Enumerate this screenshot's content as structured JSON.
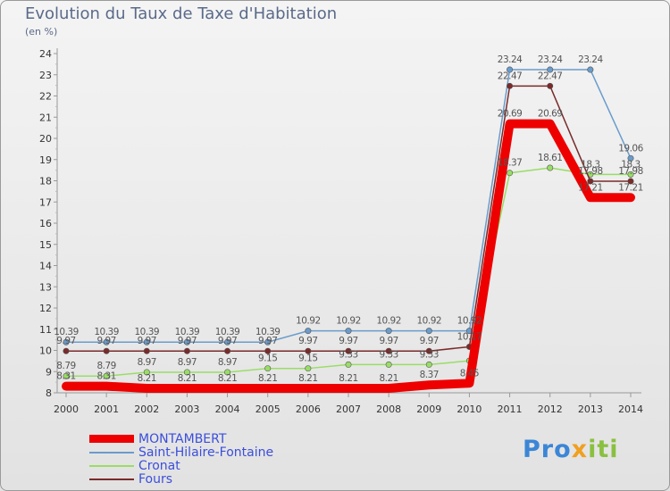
{
  "chart_data": {
    "type": "line",
    "title": "Evolution du Taux de Taxe d'Habitation",
    "unit": "(en %)",
    "x": [
      "2000",
      "2001",
      "2002",
      "2003",
      "2004",
      "2005",
      "2006",
      "2007",
      "2008",
      "2009",
      "2010",
      "2011",
      "2012",
      "2013",
      "2014"
    ],
    "ylim": [
      8,
      24
    ],
    "yticks": [
      8,
      9,
      10,
      11,
      12,
      13,
      14,
      15,
      16,
      17,
      18,
      19,
      20,
      21,
      22,
      23,
      24
    ],
    "grid": false,
    "legend_position": "bottom-left",
    "series": [
      {
        "name": "MONTAMBERT",
        "color": "#ee0000",
        "values": [
          8.31,
          8.31,
          8.21,
          8.21,
          8.21,
          8.21,
          8.21,
          8.21,
          8.21,
          8.37,
          8.45,
          20.69,
          20.69,
          17.21,
          17.21
        ],
        "labels": [
          "8.31",
          "8.31",
          "8.21",
          "8.21",
          "8.21",
          "8.21",
          "8.21",
          "8.21",
          "8.21",
          "8.37",
          "8.45",
          "20.69",
          "20.69",
          "17.21",
          "17.21"
        ]
      },
      {
        "name": "Saint-Hilaire-Fontaine",
        "color": "#6a9ccc",
        "values": [
          10.39,
          10.39,
          10.39,
          10.39,
          10.39,
          10.39,
          10.92,
          10.92,
          10.92,
          10.92,
          10.92,
          23.24,
          23.24,
          23.24,
          19.06
        ],
        "labels": [
          "10.39",
          "10.39",
          "10.39",
          "10.39",
          "10.39",
          "10.39",
          "10.92",
          "10.92",
          "10.92",
          "10.92",
          "10.92",
          "23.24",
          "23.24",
          "23.24",
          "19.06"
        ]
      },
      {
        "name": "Cronat",
        "color": "#99dd66",
        "values": [
          8.79,
          8.79,
          8.97,
          8.97,
          8.97,
          9.15,
          9.15,
          9.33,
          9.33,
          9.33,
          9.51,
          18.37,
          18.61,
          18.3,
          18.3
        ],
        "labels": [
          "8.79",
          "8.79",
          "8.97",
          "8.97",
          "8.97",
          "9.15",
          "9.15",
          "9.33",
          "9.33",
          "9.33",
          "",
          "18.37",
          "18.61",
          "18.3",
          "18.3"
        ]
      },
      {
        "name": "Fours",
        "color": "#7a2a2a",
        "values": [
          9.97,
          9.97,
          9.97,
          9.97,
          9.97,
          9.97,
          9.97,
          9.97,
          9.97,
          9.97,
          10.17,
          22.47,
          22.47,
          17.98,
          17.98
        ],
        "labels": [
          "9.97",
          "9.97",
          "9.97",
          "9.97",
          "9.97",
          "9.97",
          "9.97",
          "9.97",
          "9.97",
          "9.97",
          "10.17",
          "22.47",
          "22.47",
          "17.98",
          "17.98"
        ]
      }
    ]
  },
  "logo": {
    "p1": "Pro",
    "p2": "x",
    "p3": "iti"
  }
}
